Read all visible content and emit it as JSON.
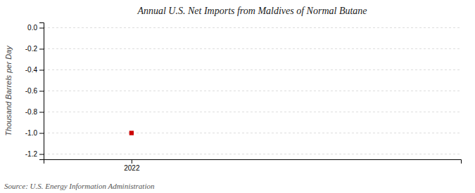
{
  "chart_data": {
    "type": "scatter",
    "title": "Annual U.S. Net Imports from Maldives of Normal Butane",
    "ylabel": "Thousand Barrels per Day",
    "source": "Source: U.S. Energy Information Administration",
    "x": [
      2022
    ],
    "values": [
      -1.0
    ],
    "xlim": [
      2021.6,
      2023.5
    ],
    "ylim": [
      -1.25,
      0.05
    ],
    "xticks": [
      2022
    ],
    "yticks": [
      {
        "value": 0.0,
        "label": "0.0"
      },
      -0.2,
      -0.4,
      -0.6,
      -0.8,
      {
        "value": -1.0,
        "label": "-1.0"
      },
      -1.2
    ],
    "grid": true,
    "marker": "square",
    "color": "#cc0000"
  }
}
